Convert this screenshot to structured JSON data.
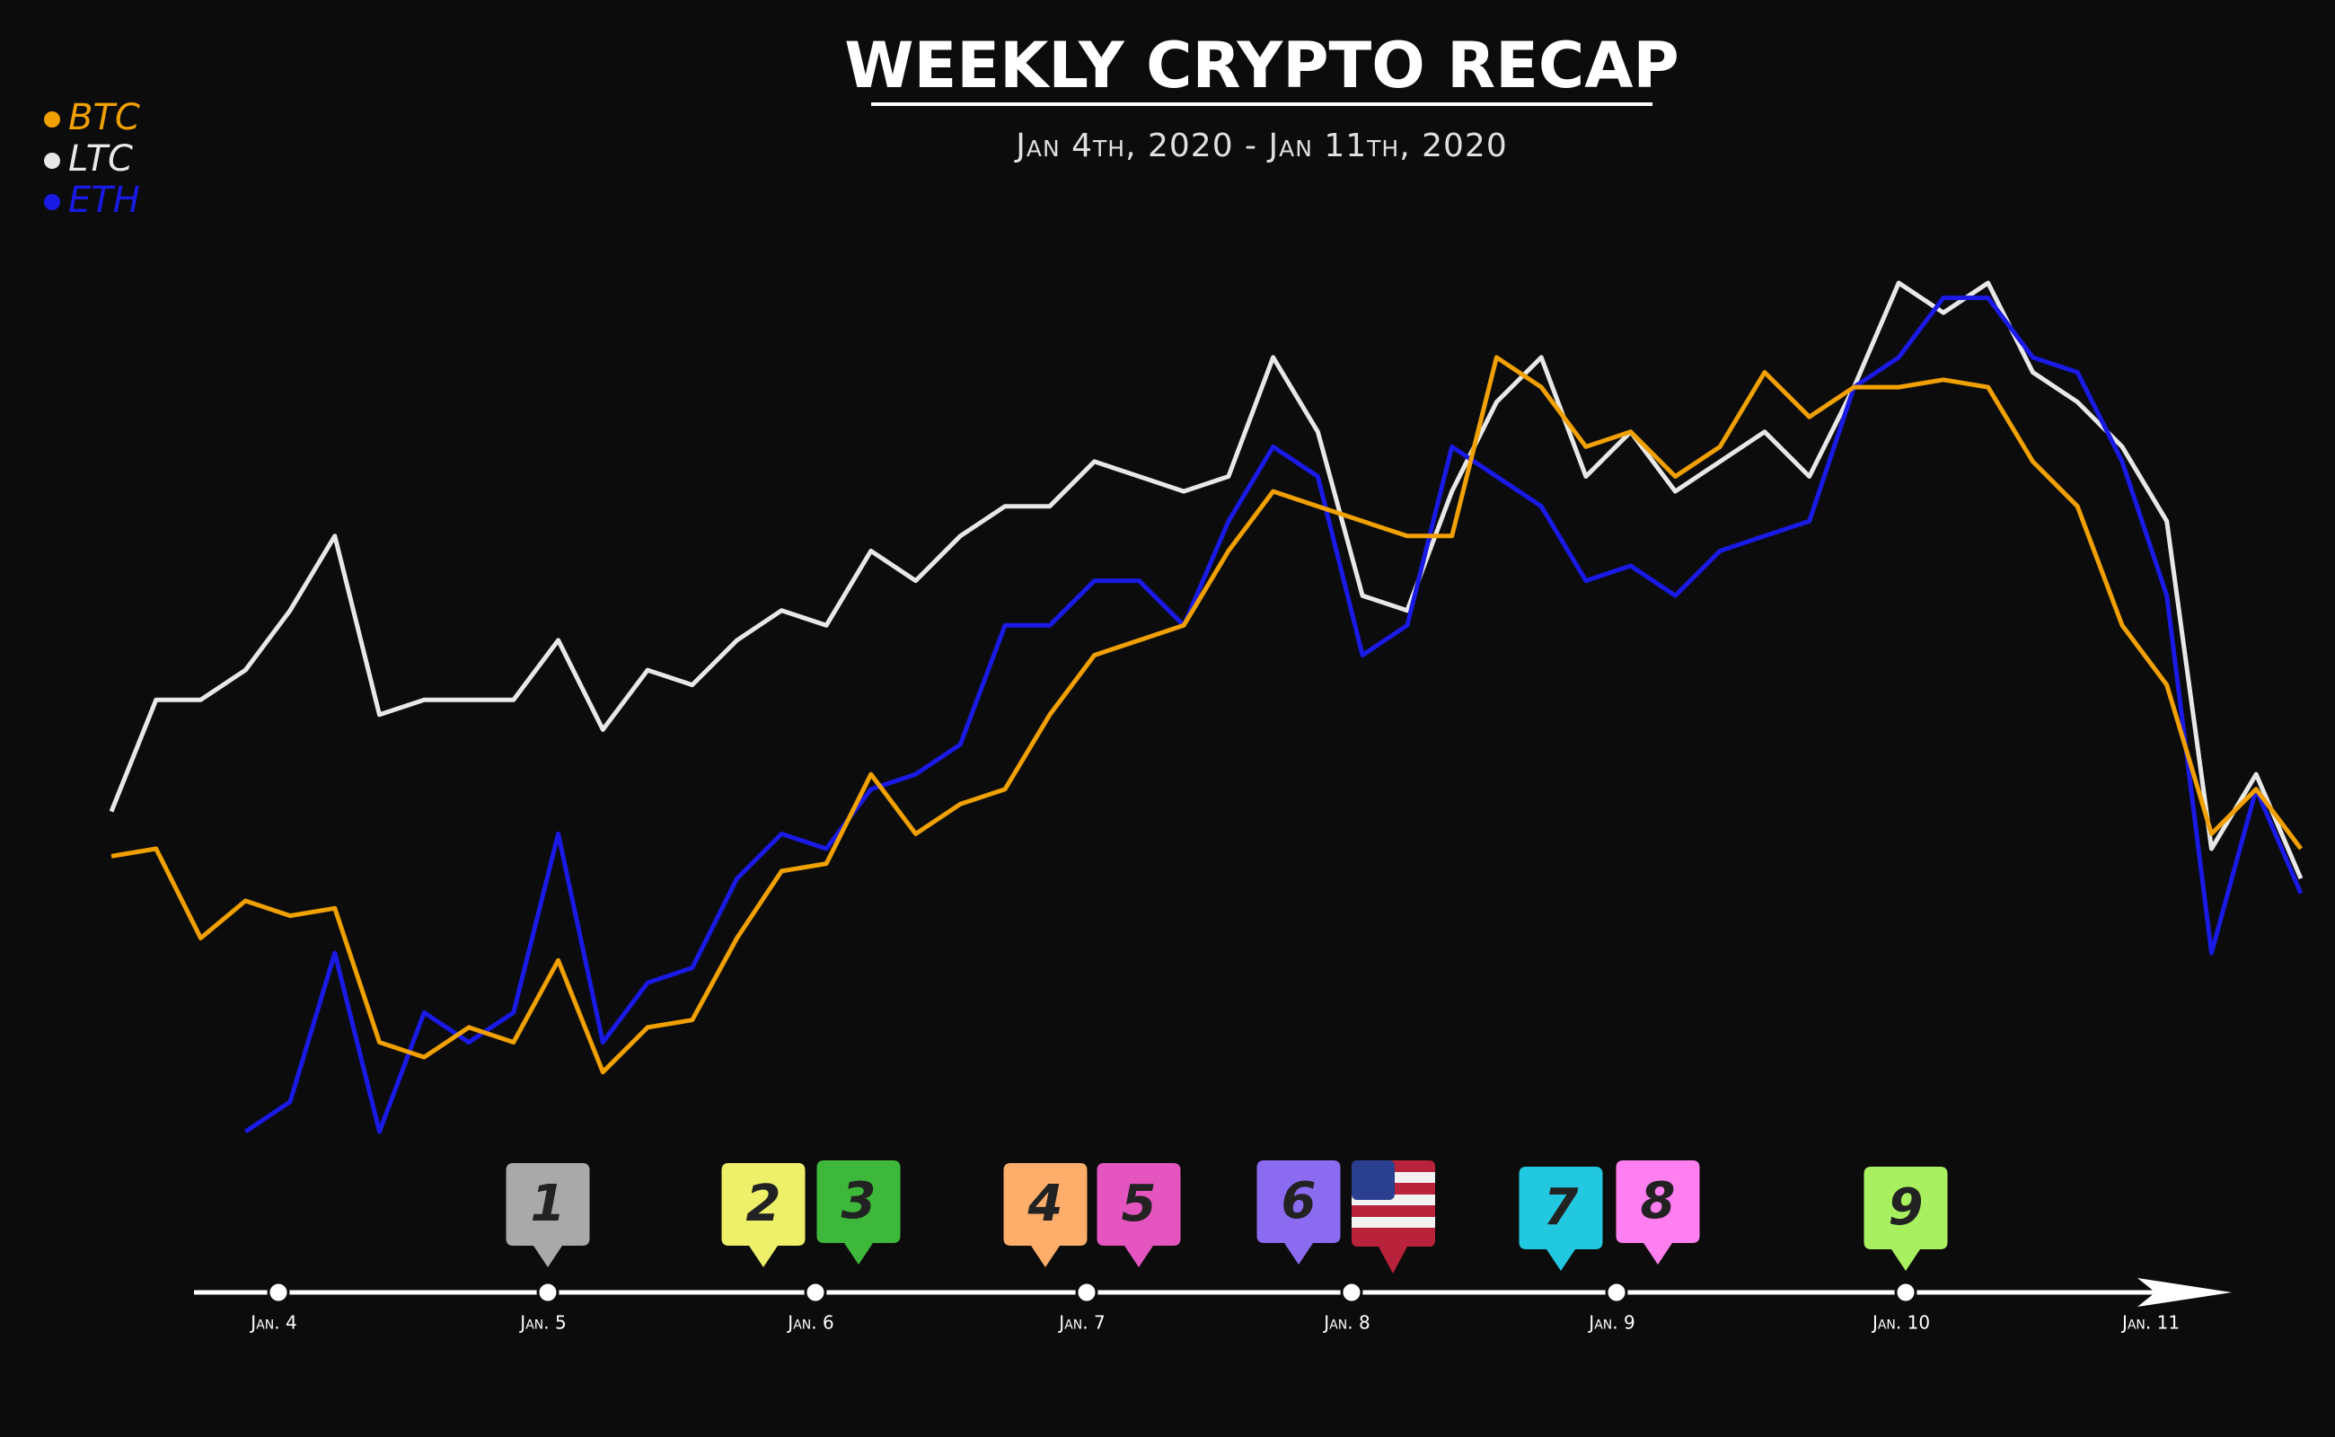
{
  "chart_data": {
    "type": "line",
    "title": "WEEKLY CRYPTO RECAP",
    "subtitle": "Jan 4th, 2020 - Jan 11th, 2020",
    "legend": "top-left",
    "series": [
      {
        "name": "BTC",
        "color": "#f0a000",
        "values": [
          390,
          395,
          335,
          360,
          350,
          355,
          265,
          255,
          275,
          265,
          320,
          245,
          275,
          280,
          335,
          380,
          385,
          445,
          405,
          425,
          435,
          485,
          525,
          535,
          545,
          595,
          635,
          625,
          615,
          605,
          605,
          725,
          705,
          665,
          675,
          645,
          665,
          715,
          685,
          705,
          705,
          710,
          705,
          655,
          625,
          545,
          505,
          405,
          435,
          395
        ]
      },
      {
        "name": "LTC",
        "color": "#e8e8e8",
        "values": [
          420,
          495,
          495,
          515,
          555,
          605,
          485,
          495,
          495,
          495,
          535,
          475,
          515,
          505,
          535,
          555,
          545,
          595,
          575,
          605,
          625,
          625,
          655,
          645,
          635,
          645,
          725,
          675,
          565,
          555,
          635,
          695,
          725,
          645,
          675,
          635,
          655,
          675,
          645,
          705,
          775,
          755,
          775,
          715,
          695,
          665,
          615,
          395,
          445,
          375
        ]
      },
      {
        "name": "ETH",
        "color": "#1a1ae6",
        "values": [
          null,
          null,
          null,
          205,
          225,
          325,
          205,
          285,
          265,
          285,
          405,
          265,
          305,
          315,
          375,
          405,
          395,
          435,
          445,
          465,
          545,
          545,
          575,
          575,
          545,
          615,
          665,
          645,
          525,
          545,
          665,
          645,
          625,
          575,
          585,
          565,
          595,
          605,
          615,
          705,
          725,
          765,
          765,
          725,
          715,
          655,
          565,
          325,
          435,
          365
        ]
      }
    ]
  },
  "timeline": {
    "dates": [
      "Jan. 4",
      "Jan. 5",
      "Jan. 6",
      "Jan. 7",
      "Jan. 8",
      "Jan. 9",
      "Jan. 10",
      "Jan. 11"
    ],
    "events": [
      {
        "label": "1",
        "color": "#a9a9a9"
      },
      {
        "label": "2",
        "color": "#eef06a"
      },
      {
        "label": "3",
        "color": "#3db83a"
      },
      {
        "label": "4",
        "color": "#ffad6a"
      },
      {
        "label": "5",
        "color": "#e455c0"
      },
      {
        "label": "6",
        "color": "#8b6cf0"
      },
      {
        "label": "7",
        "color": "#22c8e0"
      },
      {
        "label": "8",
        "color": "#ff7ef0"
      },
      {
        "label": "9",
        "color": "#a8f060"
      }
    ]
  }
}
